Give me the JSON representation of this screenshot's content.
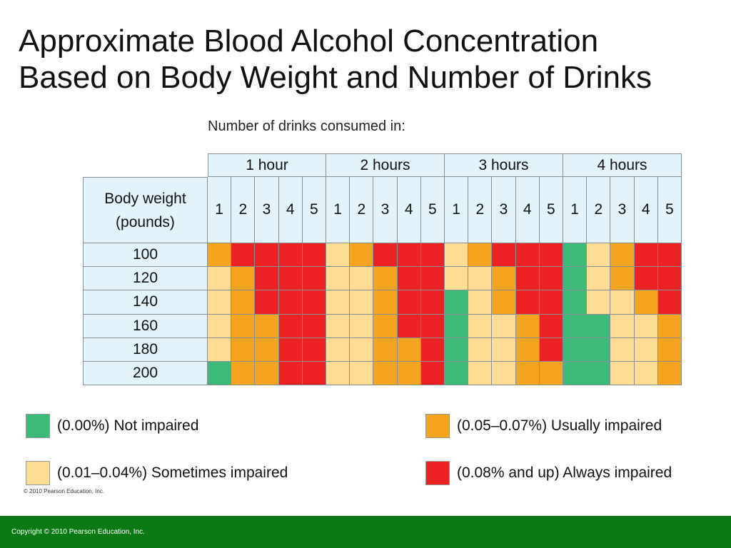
{
  "slide": {
    "title_line1": "Approximate Blood Alcohol Concentration",
    "title_line2": "Based on Body Weight and Number of Drinks",
    "caption": "Number of drinks consumed in:",
    "image_copyright": "© 2010 Pearson Education, Inc.",
    "footer_copyright": "Copyright © 2010 Pearson Education, Inc."
  },
  "colors": {
    "green": "#3dba7a",
    "light": "#fedc93",
    "orange": "#f5a41f",
    "red": "#ec2124",
    "header_bg": "#e2f3fa",
    "footer_bg": "#0b7a14"
  },
  "chart_data": {
    "type": "table",
    "row_header_label_line1": "Body weight",
    "row_header_label_line2": "(pounds)",
    "time_groups": [
      "1 hour",
      "2 hours",
      "3 hours",
      "4 hours"
    ],
    "drinks": [
      "1",
      "2",
      "3",
      "4",
      "5"
    ],
    "weights": [
      "100",
      "120",
      "140",
      "160",
      "180",
      "200"
    ],
    "levels": {
      "green": "(0.00%) Not impaired",
      "light": "(0.01–0.04%) Sometimes impaired",
      "orange": "(0.05–0.07%) Usually impaired",
      "red": "(0.08% and up) Always impaired"
    },
    "cells": [
      [
        "orange",
        "red",
        "red",
        "red",
        "red",
        "light",
        "orange",
        "red",
        "red",
        "red",
        "light",
        "orange",
        "red",
        "red",
        "red",
        "green",
        "light",
        "orange",
        "red",
        "red"
      ],
      [
        "light",
        "orange",
        "red",
        "red",
        "red",
        "light",
        "light",
        "orange",
        "red",
        "red",
        "light",
        "light",
        "orange",
        "red",
        "red",
        "green",
        "light",
        "orange",
        "red",
        "red"
      ],
      [
        "light",
        "orange",
        "red",
        "red",
        "red",
        "light",
        "light",
        "orange",
        "red",
        "red",
        "green",
        "light",
        "orange",
        "red",
        "red",
        "green",
        "light",
        "light",
        "orange",
        "red"
      ],
      [
        "light",
        "orange",
        "orange",
        "red",
        "red",
        "light",
        "light",
        "orange",
        "red",
        "red",
        "green",
        "light",
        "light",
        "orange",
        "red",
        "green",
        "green",
        "light",
        "light",
        "orange"
      ],
      [
        "light",
        "orange",
        "orange",
        "red",
        "red",
        "light",
        "light",
        "orange",
        "orange",
        "red",
        "green",
        "light",
        "light",
        "orange",
        "red",
        "green",
        "green",
        "light",
        "light",
        "orange"
      ],
      [
        "green",
        "orange",
        "orange",
        "red",
        "red",
        "light",
        "light",
        "orange",
        "orange",
        "red",
        "green",
        "light",
        "light",
        "orange",
        "orange",
        "green",
        "green",
        "light",
        "light",
        "orange"
      ]
    ]
  },
  "legend": [
    {
      "key": "green",
      "label": "(0.00%) Not impaired"
    },
    {
      "key": "orange",
      "label": "(0.05–0.07%) Usually impaired"
    },
    {
      "key": "light",
      "label": "(0.01–0.04%) Sometimes impaired"
    },
    {
      "key": "red",
      "label": "(0.08% and up) Always impaired"
    }
  ]
}
